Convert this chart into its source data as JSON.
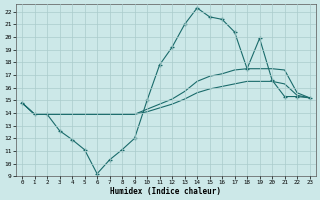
{
  "xlabel": "Humidex (Indice chaleur)",
  "background_color": "#cce8e8",
  "grid_color": "#aacccc",
  "line_color": "#1a6b6b",
  "xlim": [
    -0.5,
    23.5
  ],
  "ylim": [
    9,
    22.6
  ],
  "yticks": [
    9,
    10,
    11,
    12,
    13,
    14,
    15,
    16,
    17,
    18,
    19,
    20,
    21,
    22
  ],
  "xticks": [
    0,
    1,
    2,
    3,
    4,
    5,
    6,
    7,
    8,
    9,
    10,
    11,
    12,
    13,
    14,
    15,
    16,
    17,
    18,
    19,
    20,
    21,
    22,
    23
  ],
  "line1_x": [
    0,
    1,
    2,
    3,
    4,
    5,
    6,
    7,
    8,
    9,
    10,
    11,
    12,
    13,
    14,
    15,
    16,
    17,
    18,
    19,
    20,
    21,
    22,
    23
  ],
  "line1_y": [
    14.8,
    13.9,
    13.9,
    12.6,
    11.9,
    11.1,
    9.2,
    10.3,
    11.1,
    12.0,
    15.0,
    17.8,
    19.2,
    21.0,
    22.3,
    21.6,
    21.4,
    20.4,
    17.5,
    19.9,
    16.6,
    15.3,
    15.3,
    15.2
  ],
  "line2_x": [
    0,
    1,
    2,
    3,
    4,
    5,
    6,
    7,
    8,
    9,
    10,
    11,
    12,
    13,
    14,
    15,
    16,
    17,
    18,
    19,
    20,
    21,
    22,
    23
  ],
  "line2_y": [
    14.8,
    13.9,
    13.9,
    13.9,
    13.9,
    13.9,
    13.9,
    13.9,
    13.9,
    13.9,
    14.3,
    14.7,
    15.1,
    15.7,
    16.5,
    16.9,
    17.1,
    17.4,
    17.5,
    17.5,
    17.5,
    17.4,
    15.6,
    15.2
  ],
  "line3_x": [
    0,
    1,
    2,
    3,
    4,
    5,
    6,
    7,
    8,
    9,
    10,
    11,
    12,
    13,
    14,
    15,
    16,
    17,
    18,
    19,
    20,
    21,
    22,
    23
  ],
  "line3_y": [
    14.8,
    13.9,
    13.9,
    13.9,
    13.9,
    13.9,
    13.9,
    13.9,
    13.9,
    13.9,
    14.1,
    14.4,
    14.7,
    15.1,
    15.6,
    15.9,
    16.1,
    16.3,
    16.5,
    16.5,
    16.5,
    16.3,
    15.4,
    15.2
  ]
}
